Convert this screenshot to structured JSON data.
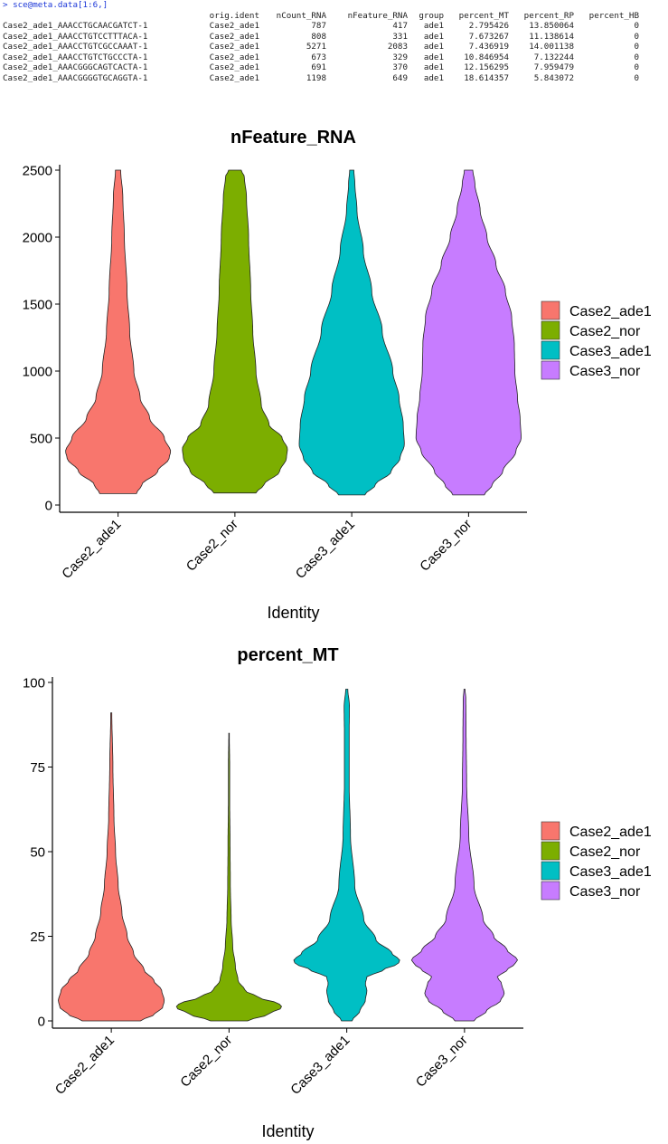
{
  "console": {
    "command": "> sce@meta.data[1:6,]",
    "columns": [
      "",
      "orig.ident",
      "nCount_RNA",
      "nFeature_RNA",
      "group",
      "percent_MT",
      "percent_RP",
      "percent_HB"
    ],
    "rows": [
      [
        "Case2_ade1_AAACCTGCAACGATCT-1",
        "Case2_ade1",
        "787",
        "417",
        "ade1",
        "2.795426",
        "13.850064",
        "0"
      ],
      [
        "Case2_ade1_AAACCTGTCCTTTACA-1",
        "Case2_ade1",
        "808",
        "331",
        "ade1",
        "7.673267",
        "11.138614",
        "0"
      ],
      [
        "Case2_ade1_AAACCTGTCGCCAAAT-1",
        "Case2_ade1",
        "5271",
        "2083",
        "ade1",
        "7.436919",
        "14.001138",
        "0"
      ],
      [
        "Case2_ade1_AAACCTGTCTGCCCTA-1",
        "Case2_ade1",
        "673",
        "329",
        "ade1",
        "10.846954",
        "7.132244",
        "0"
      ],
      [
        "Case2_ade1_AAACGGGCAGTCACTA-1",
        "Case2_ade1",
        "691",
        "370",
        "ade1",
        "12.156295",
        "7.959479",
        "0"
      ],
      [
        "Case2_ade1_AAACGGGGTGCAGGTA-1",
        "Case2_ade1",
        "1198",
        "649",
        "ade1",
        "18.614357",
        "5.843072",
        "0"
      ]
    ]
  },
  "colors": {
    "Case2_ade1": "#F8766D",
    "Case2_nor": "#7CAE00",
    "Case3_ade1": "#00BFC4",
    "Case3_nor": "#C77CFF"
  },
  "chart_data": [
    {
      "type": "violin",
      "title": "nFeature_RNA",
      "xlabel": "Identity",
      "ylabel": "",
      "categories": [
        "Case2_ade1",
        "Case2_nor",
        "Case3_ade1",
        "Case3_nor"
      ],
      "yticks": [
        "0",
        "500",
        "1000",
        "1500",
        "2000",
        "2500"
      ],
      "ylim": [
        0,
        2500
      ],
      "legend": {
        "placement": "right",
        "entries": [
          "Case2_ade1",
          "Case2_nor",
          "Case3_ade1",
          "Case3_nor"
        ]
      },
      "grid": false,
      "violins": [
        {
          "name": "Case2_ade1",
          "min": 85,
          "max": 2500,
          "profile": [
            [
              85,
              0.35
            ],
            [
              150,
              0.45
            ],
            [
              250,
              0.75
            ],
            [
              350,
              0.97
            ],
            [
              400,
              1.0
            ],
            [
              500,
              0.88
            ],
            [
              650,
              0.6
            ],
            [
              800,
              0.42
            ],
            [
              1000,
              0.3
            ],
            [
              1300,
              0.22
            ],
            [
              1600,
              0.17
            ],
            [
              2000,
              0.12
            ],
            [
              2300,
              0.09
            ],
            [
              2500,
              0.05
            ]
          ]
        },
        {
          "name": "Case2_nor",
          "min": 90,
          "max": 2500,
          "profile": [
            [
              90,
              0.4
            ],
            [
              150,
              0.55
            ],
            [
              250,
              0.85
            ],
            [
              350,
              0.98
            ],
            [
              420,
              1.0
            ],
            [
              500,
              0.9
            ],
            [
              600,
              0.65
            ],
            [
              750,
              0.5
            ],
            [
              1000,
              0.4
            ],
            [
              1300,
              0.34
            ],
            [
              1600,
              0.3
            ],
            [
              2000,
              0.26
            ],
            [
              2300,
              0.22
            ],
            [
              2450,
              0.18
            ],
            [
              2500,
              0.12
            ]
          ]
        },
        {
          "name": "Case3_ade1",
          "min": 75,
          "max": 2500,
          "profile": [
            [
              75,
              0.25
            ],
            [
              150,
              0.45
            ],
            [
              250,
              0.75
            ],
            [
              350,
              0.92
            ],
            [
              450,
              1.0
            ],
            [
              600,
              0.98
            ],
            [
              800,
              0.9
            ],
            [
              1000,
              0.78
            ],
            [
              1300,
              0.58
            ],
            [
              1600,
              0.38
            ],
            [
              1900,
              0.22
            ],
            [
              2200,
              0.1
            ],
            [
              2400,
              0.06
            ],
            [
              2500,
              0.04
            ]
          ]
        },
        {
          "name": "Case3_nor",
          "min": 75,
          "max": 2500,
          "profile": [
            [
              75,
              0.3
            ],
            [
              150,
              0.45
            ],
            [
              250,
              0.65
            ],
            [
              400,
              0.9
            ],
            [
              500,
              1.0
            ],
            [
              650,
              0.98
            ],
            [
              800,
              0.93
            ],
            [
              1000,
              0.88
            ],
            [
              1200,
              0.87
            ],
            [
              1400,
              0.82
            ],
            [
              1600,
              0.7
            ],
            [
              1800,
              0.52
            ],
            [
              2000,
              0.35
            ],
            [
              2200,
              0.22
            ],
            [
              2400,
              0.12
            ],
            [
              2500,
              0.08
            ]
          ]
        }
      ]
    },
    {
      "type": "violin",
      "title": "percent_MT",
      "xlabel": "Identity",
      "ylabel": "",
      "categories": [
        "Case2_ade1",
        "Case2_nor",
        "Case3_ade1",
        "Case3_nor"
      ],
      "yticks": [
        "0",
        "25",
        "50",
        "75",
        "100"
      ],
      "ylim": [
        0,
        100
      ],
      "legend": {
        "placement": "right",
        "entries": [
          "Case2_ade1",
          "Case2_nor",
          "Case3_ade1",
          "Case3_nor"
        ]
      },
      "grid": false,
      "violins": [
        {
          "name": "Case2_ade1",
          "min": 0,
          "max": 91,
          "profile": [
            [
              0,
              0.55
            ],
            [
              2,
              0.82
            ],
            [
              4,
              0.97
            ],
            [
              6,
              1.0
            ],
            [
              9,
              0.95
            ],
            [
              12,
              0.8
            ],
            [
              15,
              0.62
            ],
            [
              20,
              0.42
            ],
            [
              25,
              0.3
            ],
            [
              32,
              0.2
            ],
            [
              40,
              0.13
            ],
            [
              50,
              0.08
            ],
            [
              60,
              0.05
            ],
            [
              75,
              0.03
            ],
            [
              91,
              0.01
            ]
          ]
        },
        {
          "name": "Case2_nor",
          "min": 0,
          "max": 85,
          "profile": [
            [
              0,
              0.35
            ],
            [
              2,
              0.75
            ],
            [
              4,
              1.0
            ],
            [
              5,
              0.95
            ],
            [
              7,
              0.55
            ],
            [
              9,
              0.3
            ],
            [
              12,
              0.17
            ],
            [
              16,
              0.12
            ],
            [
              22,
              0.07
            ],
            [
              30,
              0.04
            ],
            [
              40,
              0.025
            ],
            [
              52,
              0.02
            ],
            [
              65,
              0.012
            ],
            [
              75,
              0.012
            ],
            [
              85,
              0.005
            ]
          ]
        },
        {
          "name": "Case3_ade1",
          "min": 0,
          "max": 98,
          "profile": [
            [
              0,
              0.1
            ],
            [
              3,
              0.25
            ],
            [
              6,
              0.35
            ],
            [
              9,
              0.38
            ],
            [
              11,
              0.35
            ],
            [
              13,
              0.38
            ],
            [
              15,
              0.68
            ],
            [
              17,
              0.98
            ],
            [
              18,
              1.0
            ],
            [
              20,
              0.85
            ],
            [
              24,
              0.55
            ],
            [
              30,
              0.32
            ],
            [
              40,
              0.15
            ],
            [
              55,
              0.07
            ],
            [
              70,
              0.045
            ],
            [
              85,
              0.045
            ],
            [
              93,
              0.05
            ],
            [
              98,
              0.02
            ]
          ]
        },
        {
          "name": "Case3_nor",
          "min": 0,
          "max": 98,
          "profile": [
            [
              0,
              0.18
            ],
            [
              3,
              0.42
            ],
            [
              6,
              0.68
            ],
            [
              8,
              0.75
            ],
            [
              11,
              0.7
            ],
            [
              13,
              0.62
            ],
            [
              15,
              0.8
            ],
            [
              17,
              0.96
            ],
            [
              18,
              1.0
            ],
            [
              21,
              0.8
            ],
            [
              25,
              0.55
            ],
            [
              30,
              0.35
            ],
            [
              40,
              0.18
            ],
            [
              55,
              0.08
            ],
            [
              70,
              0.04
            ],
            [
              85,
              0.03
            ],
            [
              95,
              0.025
            ],
            [
              98,
              0.01
            ]
          ]
        }
      ]
    }
  ]
}
